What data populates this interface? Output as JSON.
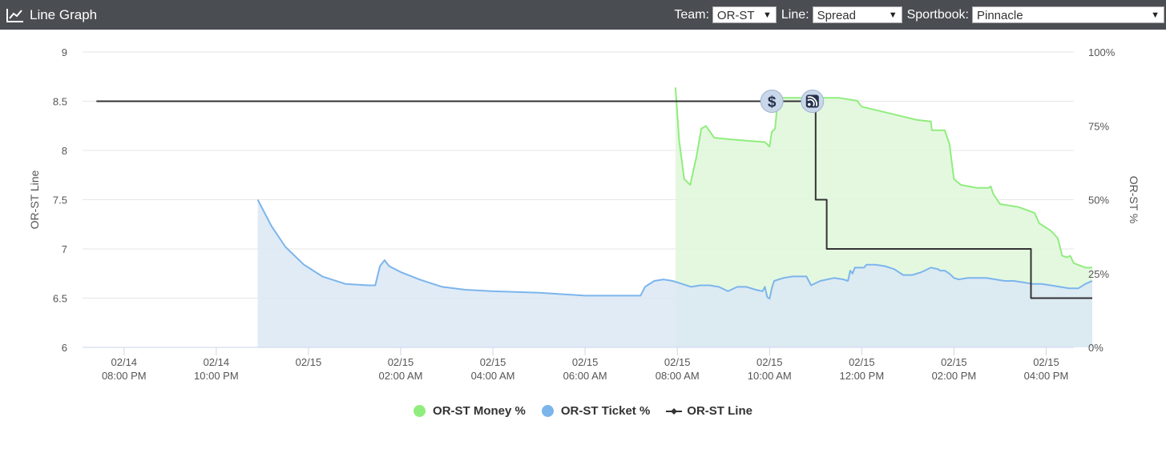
{
  "header": {
    "title": "Line Graph",
    "icon": "line-chart-icon",
    "team_label": "Team:",
    "team_value": "OR-ST",
    "line_label": "Line:",
    "line_value": "Spread",
    "book_label": "Sportbook:",
    "book_value": "Pinnacle"
  },
  "chart_data": {
    "type": "line",
    "ylabel": "OR-ST Line",
    "y2label": "OR-ST %",
    "ylim": [
      6,
      9
    ],
    "yticks": [
      "6",
      "6.5",
      "7",
      "7.5",
      "8",
      "8.5",
      "9"
    ],
    "y2lim": [
      0,
      100
    ],
    "y2ticks": [
      "0%",
      "25%",
      "50%",
      "75%",
      "100%"
    ],
    "x_unit": "hours",
    "xlim": [
      -0.9,
      20.6
    ],
    "xticks": [
      {
        "t": 0,
        "date": "02/14",
        "time": "08:00 PM"
      },
      {
        "t": 2,
        "date": "02/14",
        "time": "10:00 PM"
      },
      {
        "t": 4,
        "date": "02/15",
        "time": ""
      },
      {
        "t": 6,
        "date": "02/15",
        "time": "02:00 AM"
      },
      {
        "t": 8,
        "date": "02/15",
        "time": "04:00 AM"
      },
      {
        "t": 10,
        "date": "02/15",
        "time": "06:00 AM"
      },
      {
        "t": 12,
        "date": "02/15",
        "time": "08:00 AM"
      },
      {
        "t": 14,
        "date": "02/15",
        "time": "10:00 AM"
      },
      {
        "t": 16,
        "date": "02/15",
        "time": "12:00 PM"
      },
      {
        "t": 18,
        "date": "02/15",
        "time": "02:00 PM"
      },
      {
        "t": 20,
        "date": "02/15",
        "time": "04:00 PM"
      }
    ],
    "grid": true,
    "legend_position": "bottom-center",
    "series": [
      {
        "name": "OR-ST Money %",
        "axis": "right",
        "color": "#90ed7d",
        "fill": "#dff7da",
        "points": [
          [
            11.96,
            88
          ],
          [
            12.04,
            70
          ],
          [
            12.15,
            57
          ],
          [
            12.28,
            55
          ],
          [
            12.42,
            65
          ],
          [
            12.52,
            74
          ],
          [
            12.62,
            75
          ],
          [
            12.8,
            71
          ],
          [
            13.1,
            70.5
          ],
          [
            13.5,
            70
          ],
          [
            13.9,
            69.5
          ],
          [
            14.0,
            68
          ],
          [
            14.05,
            73
          ],
          [
            14.12,
            74
          ],
          [
            14.18,
            84
          ],
          [
            14.3,
            84.5
          ],
          [
            14.6,
            84.5
          ],
          [
            15.0,
            84.5
          ],
          [
            15.5,
            84.5
          ],
          [
            15.9,
            83.5
          ],
          [
            16.0,
            81.5
          ],
          [
            16.4,
            80
          ],
          [
            16.8,
            78.5
          ],
          [
            17.2,
            77
          ],
          [
            17.5,
            76.5
          ],
          [
            17.52,
            73.5
          ],
          [
            17.8,
            73.5
          ],
          [
            17.9,
            69
          ],
          [
            18.0,
            57
          ],
          [
            18.15,
            55
          ],
          [
            18.5,
            54
          ],
          [
            18.75,
            54
          ],
          [
            18.8,
            54.5
          ],
          [
            18.85,
            52
          ],
          [
            19.0,
            48.5
          ],
          [
            19.4,
            47.5
          ],
          [
            19.75,
            45.5
          ],
          [
            19.85,
            42
          ],
          [
            20.1,
            39.5
          ],
          [
            20.25,
            37
          ],
          [
            20.35,
            31
          ],
          [
            20.45,
            30.5
          ],
          [
            20.52,
            31
          ],
          [
            20.6,
            28.5
          ],
          [
            20.85,
            27
          ],
          [
            21.0,
            27
          ]
        ]
      },
      {
        "name": "OR-ST Ticket %",
        "axis": "right",
        "color": "#7cb5ec",
        "fill": "#dbe8f5",
        "points": [
          [
            2.9,
            50
          ],
          [
            3.0,
            47
          ],
          [
            3.2,
            41
          ],
          [
            3.5,
            34
          ],
          [
            3.9,
            28
          ],
          [
            4.3,
            24
          ],
          [
            4.8,
            21.5
          ],
          [
            5.3,
            21
          ],
          [
            5.45,
            21
          ],
          [
            5.55,
            27.5
          ],
          [
            5.65,
            29.5
          ],
          [
            5.75,
            27.5
          ],
          [
            6.0,
            25.5
          ],
          [
            6.4,
            23
          ],
          [
            6.9,
            20.5
          ],
          [
            7.4,
            19.5
          ],
          [
            8.0,
            19
          ],
          [
            9.0,
            18.5
          ],
          [
            10.0,
            17.5
          ],
          [
            11.1,
            17.5
          ],
          [
            11.2,
            17.5
          ],
          [
            11.3,
            20.5
          ],
          [
            11.5,
            22.5
          ],
          [
            11.7,
            23
          ],
          [
            11.9,
            22.5
          ],
          [
            12.1,
            21.5
          ],
          [
            12.3,
            20.5
          ],
          [
            12.5,
            21
          ],
          [
            12.7,
            21
          ],
          [
            12.9,
            20.5
          ],
          [
            13.1,
            19
          ],
          [
            13.3,
            20.5
          ],
          [
            13.5,
            20.5
          ],
          [
            13.7,
            19.5
          ],
          [
            13.85,
            19
          ],
          [
            13.9,
            20.5
          ],
          [
            13.95,
            17
          ],
          [
            14.0,
            16.5
          ],
          [
            14.05,
            20
          ],
          [
            14.1,
            22.5
          ],
          [
            14.3,
            23.5
          ],
          [
            14.5,
            24
          ],
          [
            14.8,
            24
          ],
          [
            14.9,
            21
          ],
          [
            15.1,
            22.5
          ],
          [
            15.4,
            23.5
          ],
          [
            15.6,
            23
          ],
          [
            15.7,
            22.5
          ],
          [
            15.75,
            26
          ],
          [
            15.8,
            25
          ],
          [
            15.85,
            27
          ],
          [
            16.05,
            27
          ],
          [
            16.1,
            28
          ],
          [
            16.3,
            28
          ],
          [
            16.5,
            27.5
          ],
          [
            16.7,
            26.5
          ],
          [
            16.9,
            24.5
          ],
          [
            17.1,
            24.5
          ],
          [
            17.3,
            25.5
          ],
          [
            17.5,
            27
          ],
          [
            17.65,
            26.5
          ],
          [
            17.7,
            26
          ],
          [
            17.8,
            26
          ],
          [
            17.9,
            25
          ],
          [
            18.0,
            23.5
          ],
          [
            18.1,
            23
          ],
          [
            18.3,
            23.5
          ],
          [
            18.5,
            23.5
          ],
          [
            18.7,
            23.5
          ],
          [
            18.9,
            23
          ],
          [
            19.1,
            22.5
          ],
          [
            19.3,
            22.5
          ],
          [
            19.5,
            22
          ],
          [
            19.7,
            21.5
          ],
          [
            19.9,
            21.5
          ],
          [
            20.1,
            21
          ],
          [
            20.3,
            20.5
          ],
          [
            20.5,
            20
          ],
          [
            20.7,
            20
          ],
          [
            20.85,
            21.5
          ],
          [
            21.0,
            22.5
          ]
        ]
      },
      {
        "name": "OR-ST Line",
        "axis": "left",
        "color": "#333333",
        "step": true,
        "points": [
          [
            -0.6,
            8.5
          ],
          [
            15.0,
            8.5
          ],
          [
            15.0,
            7.5
          ],
          [
            15.24,
            7.5
          ],
          [
            15.24,
            7.0
          ],
          [
            19.67,
            7.0
          ],
          [
            19.67,
            6.5
          ],
          [
            21.0,
            6.5
          ]
        ]
      }
    ],
    "markers": [
      {
        "name": "money-marker",
        "icon": "dollar-icon",
        "label": "$",
        "t": 14.05,
        "value": 8.5
      },
      {
        "name": "news-marker",
        "icon": "rss-icon",
        "t": 14.93,
        "value": 8.5
      }
    ]
  },
  "legend": {
    "money": "OR-ST Money %",
    "ticket": "OR-ST Ticket %",
    "line": "OR-ST Line",
    "money_color": "#90ed7d",
    "ticket_color": "#7cb5ec",
    "line_color": "#333333"
  }
}
